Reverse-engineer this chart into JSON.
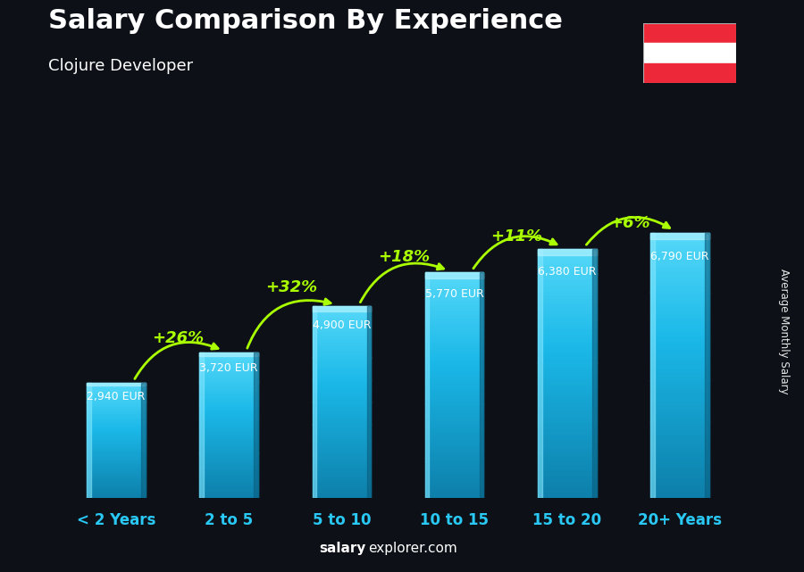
{
  "title": "Salary Comparison By Experience",
  "subtitle": "Clojure Developer",
  "ylabel": "Average Monthly Salary",
  "categories": [
    "< 2 Years",
    "2 to 5",
    "5 to 10",
    "10 to 15",
    "15 to 20",
    "20+ Years"
  ],
  "values": [
    2940,
    3720,
    4900,
    5770,
    6380,
    6790
  ],
  "salary_labels": [
    "2,940 EUR",
    "3,720 EUR",
    "4,900 EUR",
    "5,770 EUR",
    "6,380 EUR",
    "6,790 EUR"
  ],
  "pct_labels": [
    "+26%",
    "+32%",
    "+18%",
    "+11%",
    "+6%"
  ],
  "bar_color_face": "#29c8f5",
  "bar_color_light": "#6ee0fa",
  "bar_color_dark": "#0d7faa",
  "bar_color_side": "#0a5f80",
  "bar_color_top": "#8ae8ff",
  "bg_color": "#0d1117",
  "title_color": "#ffffff",
  "subtitle_color": "#ffffff",
  "salary_label_color": "#ffffff",
  "pct_label_color": "#aaff00",
  "xlabel_color": "#29c8f5",
  "footer_salary_color": "#ffffff",
  "footer_explorer_color": "#ffffff",
  "arrow_color": "#aaff00",
  "ylim": [
    0,
    8500
  ],
  "bar_width": 0.52,
  "flag_red": "#ED2939",
  "flag_white": "#ffffff"
}
